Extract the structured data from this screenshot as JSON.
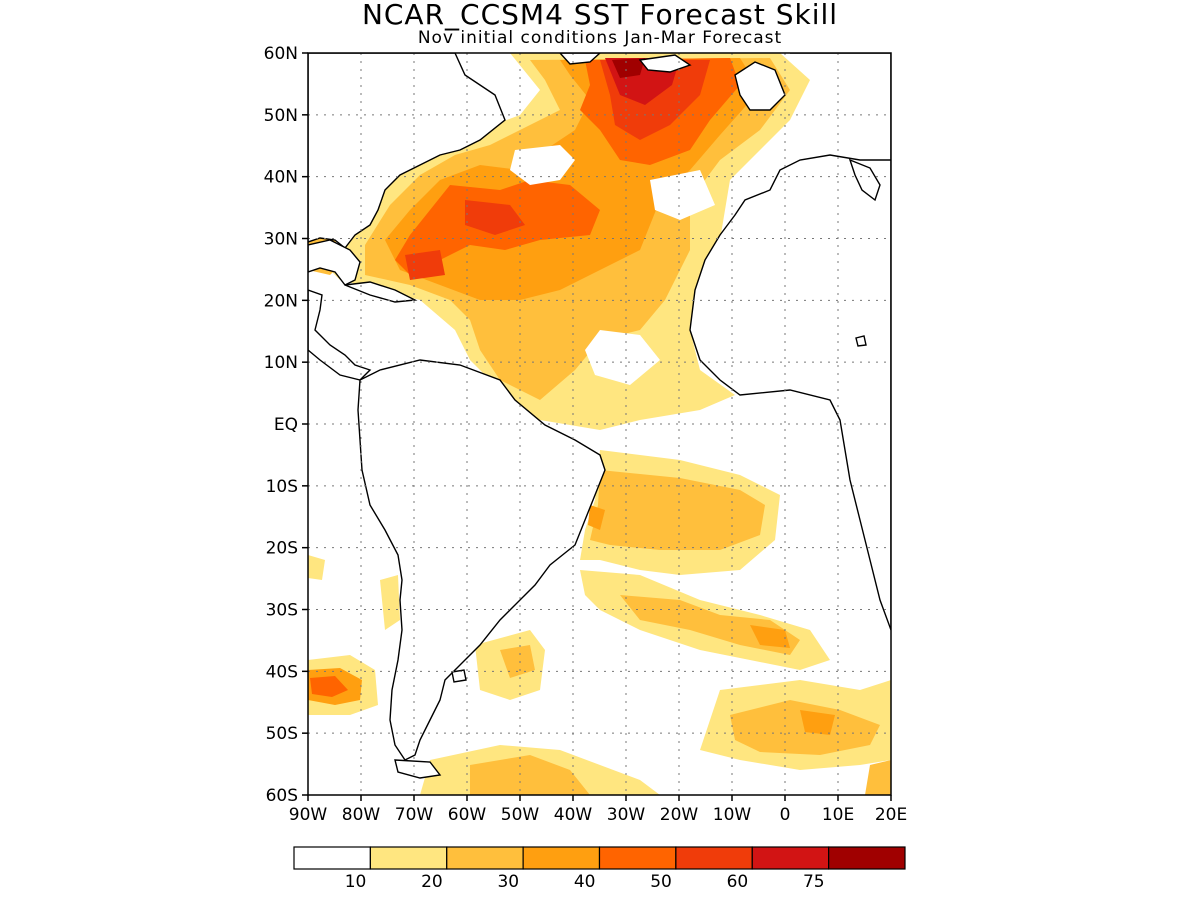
{
  "header": {
    "title": "NCAR_CCSM4 SST Forecast Skill",
    "subtitle": "Nov initial conditions  Jan-Mar Forecast"
  },
  "map": {
    "lat_labels": [
      "60N",
      "50N",
      "40N",
      "30N",
      "20N",
      "10N",
      "EQ",
      "10S",
      "20S",
      "30S",
      "40S",
      "50S",
      "60S"
    ],
    "lon_labels": [
      "90W",
      "80W",
      "70W",
      "60W",
      "50W",
      "40W",
      "30W",
      "20W",
      "10W",
      "0",
      "10E",
      "20E"
    ],
    "lat_range": [
      -60,
      60
    ],
    "lon_range": [
      -90,
      20
    ],
    "grid": true
  },
  "colorbar": {
    "levels": [
      "10",
      "20",
      "30",
      "40",
      "50",
      "60",
      "75"
    ],
    "colors": [
      "#ffffff",
      "#ffe680",
      "#ffbf3c",
      "#ff9f10",
      "#ff6400",
      "#f03c0a",
      "#d21414",
      "#a00000"
    ]
  }
}
